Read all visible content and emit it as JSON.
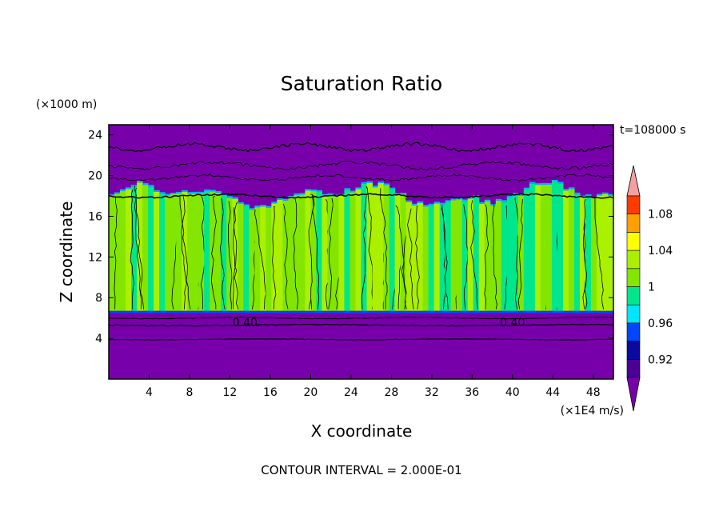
{
  "chart_data": {
    "type": "heatmap",
    "title": "Saturation Ratio",
    "xlabel": "X coordinate",
    "ylabel": "Z coordinate",
    "x_unit": "(×1E4 m/s)",
    "y_unit": "(×1000 m)",
    "time_label": "t=108000 s",
    "footer": "CONTOUR INTERVAL = 2.000E-01",
    "xlim": [
      0,
      50
    ],
    "ylim": [
      0,
      25
    ],
    "x_ticks": [
      4,
      8,
      12,
      16,
      20,
      24,
      28,
      32,
      36,
      40,
      44,
      48
    ],
    "y_ticks": [
      4,
      8,
      12,
      16,
      20,
      24
    ],
    "grid": false,
    "contour_interval": 0.2,
    "contour_labels": [
      {
        "x": 13.5,
        "y": 5.2,
        "text": "0.40"
      },
      {
        "x": 40.0,
        "y": 5.2,
        "text": "0.40"
      }
    ],
    "colorbar": {
      "levels": [
        0.9,
        0.92,
        0.94,
        0.96,
        0.98,
        1.0,
        1.02,
        1.04,
        1.06,
        1.08,
        1.1
      ],
      "labels": [
        "0.92",
        "0.96",
        "1",
        "1.04",
        "1.08"
      ],
      "label_values": [
        0.92,
        0.96,
        1.0,
        1.04,
        1.08
      ],
      "colors": [
        "#4b0096",
        "#0a0aa0",
        "#0046ff",
        "#00e6ff",
        "#00e68c",
        "#82e600",
        "#aaf000",
        "#ffff00",
        "#ffa000",
        "#ff3c00",
        "#e61414"
      ],
      "low_color": "#7800aa",
      "high_color": "#f5a0a0"
    },
    "layers": [
      {
        "z": [
          0,
          6.7
        ],
        "field": "dry",
        "color": "#7800aa"
      },
      {
        "z": [
          6.7,
          18.0
        ],
        "field": "cloud",
        "colors": [
          "#00e68c",
          "#82e600",
          "#aaf000"
        ]
      },
      {
        "z": [
          18.0,
          25
        ],
        "field": "dry",
        "color": "#7800aa"
      }
    ]
  }
}
